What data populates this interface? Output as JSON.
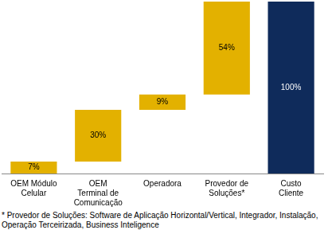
{
  "chart_data": {
    "type": "waterfall",
    "categories": [
      "OEM Módulo Celular",
      "OEM Terminal de Comunicação",
      "Operadora",
      "Provedor de Soluções*",
      "Custo Cliente"
    ],
    "values": [
      7,
      30,
      9,
      54,
      100
    ],
    "value_labels": [
      "7%",
      "30%",
      "9%",
      "54%",
      "100%"
    ],
    "colors": [
      "#e3b100",
      "#e3b100",
      "#e3b100",
      "#e3b100",
      "#0f2b5b"
    ],
    "ylim": [
      0,
      100
    ],
    "grid": false,
    "data_labels": true,
    "tick_labels": "x",
    "footnote": "* Provedor de Soluções: Software de Aplicação Horizontal/Vertical, Integrador, Instalação, Operação Terceirizada, Business Inteligence"
  }
}
